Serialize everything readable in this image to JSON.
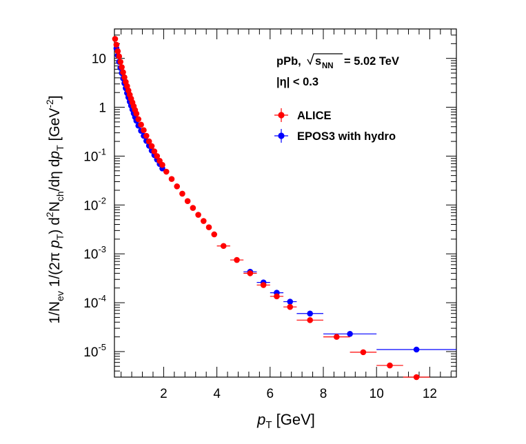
{
  "chart_data": {
    "type": "scatter",
    "xlabel_main": "p",
    "xlabel_sub": "T",
    "xlabel_unit": "[GeV]",
    "ylabel": "1/N_ev 1/(2π p_T) d²N_ch/dη dp_T [GeV⁻²]",
    "xlim": [
      0.15,
      13.0
    ],
    "ylim": [
      3e-06,
      40
    ],
    "yscale": "log",
    "x_ticks": [
      2,
      4,
      6,
      8,
      10,
      12
    ],
    "x_tick_labels": [
      "2",
      "4",
      "6",
      "8",
      "10",
      "12"
    ],
    "y_ticks": [
      1e-05,
      0.0001,
      0.001,
      0.01,
      0.1,
      1,
      10
    ],
    "annotation": {
      "system": "pPb,",
      "energy_value": "= 5.02 TeV",
      "eta_cut": "|η| < 0.3"
    },
    "legend_position": "top-right",
    "series": [
      {
        "name": "ALICE",
        "color": "#ff0000",
        "points": [
          {
            "x": 0.175,
            "y": 25.0
          },
          {
            "x": 0.225,
            "y": 19.0
          },
          {
            "x": 0.275,
            "y": 14.0
          },
          {
            "x": 0.325,
            "y": 11.0
          },
          {
            "x": 0.375,
            "y": 8.5
          },
          {
            "x": 0.425,
            "y": 6.6
          },
          {
            "x": 0.475,
            "y": 5.2
          },
          {
            "x": 0.525,
            "y": 4.1
          },
          {
            "x": 0.575,
            "y": 3.3
          },
          {
            "x": 0.625,
            "y": 2.7
          },
          {
            "x": 0.675,
            "y": 2.2
          },
          {
            "x": 0.725,
            "y": 1.8
          },
          {
            "x": 0.775,
            "y": 1.5
          },
          {
            "x": 0.825,
            "y": 1.25
          },
          {
            "x": 0.875,
            "y": 1.05
          },
          {
            "x": 0.925,
            "y": 0.88
          },
          {
            "x": 0.975,
            "y": 0.74
          },
          {
            "x": 1.05,
            "y": 0.57
          },
          {
            "x": 1.15,
            "y": 0.44
          },
          {
            "x": 1.25,
            "y": 0.34
          },
          {
            "x": 1.35,
            "y": 0.26
          },
          {
            "x": 1.45,
            "y": 0.2
          },
          {
            "x": 1.55,
            "y": 0.16
          },
          {
            "x": 1.65,
            "y": 0.125
          },
          {
            "x": 1.75,
            "y": 0.1
          },
          {
            "x": 1.85,
            "y": 0.08
          },
          {
            "x": 1.95,
            "y": 0.066
          },
          {
            "x": 2.1,
            "y": 0.048
          },
          {
            "x": 2.3,
            "y": 0.034
          },
          {
            "x": 2.5,
            "y": 0.024
          },
          {
            "x": 2.7,
            "y": 0.017
          },
          {
            "x": 2.9,
            "y": 0.012
          },
          {
            "x": 3.1,
            "y": 0.0087
          },
          {
            "x": 3.3,
            "y": 0.0063
          },
          {
            "x": 3.5,
            "y": 0.0047
          },
          {
            "x": 3.7,
            "y": 0.0035
          },
          {
            "x": 3.9,
            "y": 0.0025
          },
          {
            "x": 4.25,
            "y": 0.00145,
            "xerr": 0.25
          },
          {
            "x": 4.75,
            "y": 0.00075,
            "xerr": 0.25
          },
          {
            "x": 5.25,
            "y": 0.0004,
            "xerr": 0.25
          },
          {
            "x": 5.75,
            "y": 0.00023,
            "xerr": 0.25
          },
          {
            "x": 6.25,
            "y": 0.000135,
            "xerr": 0.25
          },
          {
            "x": 6.75,
            "y": 8.2e-05,
            "xerr": 0.25
          },
          {
            "x": 7.5,
            "y": 4.4e-05,
            "xerr": 0.5
          },
          {
            "x": 8.5,
            "y": 2e-05,
            "xerr": 0.5
          },
          {
            "x": 9.5,
            "y": 9.7e-06,
            "xerr": 0.5
          },
          {
            "x": 10.5,
            "y": 5.2e-06,
            "xerr": 0.5
          },
          {
            "x": 11.5,
            "y": 3e-06,
            "xerr": 0.5
          }
        ]
      },
      {
        "name": "EPOS3 with hydro",
        "color": "#0000ff",
        "points": [
          {
            "x": 0.225,
            "y": 16.0
          },
          {
            "x": 0.275,
            "y": 11.5
          },
          {
            "x": 0.325,
            "y": 8.5
          },
          {
            "x": 0.375,
            "y": 6.4
          },
          {
            "x": 0.425,
            "y": 5.0
          },
          {
            "x": 0.475,
            "y": 3.9
          },
          {
            "x": 0.525,
            "y": 3.1
          },
          {
            "x": 0.575,
            "y": 2.45
          },
          {
            "x": 0.625,
            "y": 1.95
          },
          {
            "x": 0.675,
            "y": 1.6
          },
          {
            "x": 0.725,
            "y": 1.3
          },
          {
            "x": 0.775,
            "y": 1.08
          },
          {
            "x": 0.825,
            "y": 0.9
          },
          {
            "x": 0.875,
            "y": 0.75
          },
          {
            "x": 0.925,
            "y": 0.63
          },
          {
            "x": 0.975,
            "y": 0.53
          },
          {
            "x": 1.05,
            "y": 0.42
          },
          {
            "x": 1.15,
            "y": 0.33
          },
          {
            "x": 1.25,
            "y": 0.26
          },
          {
            "x": 1.35,
            "y": 0.205
          },
          {
            "x": 1.45,
            "y": 0.163
          },
          {
            "x": 1.55,
            "y": 0.13
          },
          {
            "x": 1.65,
            "y": 0.105
          },
          {
            "x": 1.75,
            "y": 0.085
          },
          {
            "x": 1.85,
            "y": 0.069
          },
          {
            "x": 1.95,
            "y": 0.056
          },
          {
            "x": 5.25,
            "y": 0.00043,
            "xerr": 0.25
          },
          {
            "x": 5.75,
            "y": 0.00026,
            "xerr": 0.25
          },
          {
            "x": 6.25,
            "y": 0.00016,
            "xerr": 0.25
          },
          {
            "x": 6.75,
            "y": 0.000105,
            "xerr": 0.25
          },
          {
            "x": 7.5,
            "y": 6e-05,
            "xerr": 0.5
          },
          {
            "x": 9.0,
            "y": 2.3e-05,
            "xerr": 1.0
          },
          {
            "x": 11.5,
            "y": 1.1e-05,
            "xerr": 1.5
          }
        ]
      }
    ]
  }
}
